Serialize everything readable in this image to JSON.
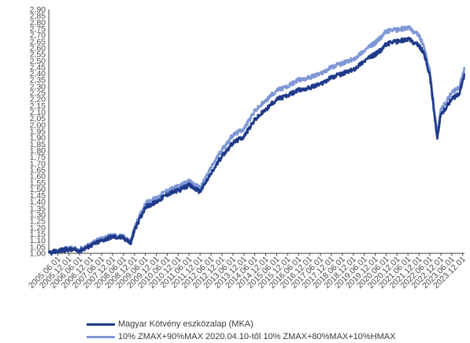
{
  "chart_data": {
    "type": "line",
    "title": "",
    "xlabel": "",
    "ylabel": "",
    "ylim": [
      1.0,
      2.9
    ],
    "yticks": [
      "1,00",
      "1,05",
      "1,10",
      "1,15",
      "1,20",
      "1,25",
      "1,30",
      "1,35",
      "1,40",
      "1,45",
      "1,50",
      "1,55",
      "1,60",
      "1,65",
      "1,70",
      "1,75",
      "1,80",
      "1,85",
      "1,90",
      "1,95",
      "2,00",
      "2,05",
      "2,10",
      "2,15",
      "2,20",
      "2,25",
      "2,30",
      "2,35",
      "2,40",
      "2,45",
      "2,50",
      "2,55",
      "2,60",
      "2,65",
      "2,70",
      "2,75",
      "2,80",
      "2,85",
      "2,90"
    ],
    "xticks": [
      "2005.06.01",
      "2005.12.01",
      "2006.06.01",
      "2006.12.01",
      "2007.06.01",
      "2007.12.01",
      "2008.06.01",
      "2008.12.01",
      "2009.06.01",
      "2009.12.01",
      "2010.06.01",
      "2010.12.01",
      "2011.06.01",
      "2011.12.01",
      "2012.06.01",
      "2012.12.01",
      "2013.06.01",
      "2013.12.01",
      "2014.06.01",
      "2014.12.01",
      "2015.06.01",
      "2015.12.01",
      "2016.06.01",
      "2016.12.01",
      "2017.06.01",
      "2017.12.01",
      "2018.06.01",
      "2018.12.01",
      "2019.06.01",
      "2019.12.01",
      "2020.06.01",
      "2020.12.01",
      "2021.06.01",
      "2021.12.01",
      "2022.06.01",
      "2022.12.01",
      "2023.06.01",
      "2023.12.01"
    ],
    "x_range": [
      "2005.01.01",
      "2023.12.31"
    ],
    "legend_position": "bottom",
    "series": [
      {
        "name": "Magyar Kötvény eszközalap (MKA)",
        "color": "#1f3a8a",
        "points": [
          [
            "2005.01.01",
            1.0
          ],
          [
            "2005.06.01",
            1.02
          ],
          [
            "2005.12.01",
            1.03
          ],
          [
            "2006.06.01",
            1.02
          ],
          [
            "2006.12.01",
            1.06
          ],
          [
            "2007.06.01",
            1.1
          ],
          [
            "2007.12.01",
            1.13
          ],
          [
            "2008.06.01",
            1.12
          ],
          [
            "2008.10.01",
            1.08
          ],
          [
            "2008.12.01",
            1.18
          ],
          [
            "2009.06.01",
            1.36
          ],
          [
            "2009.12.01",
            1.4
          ],
          [
            "2010.06.01",
            1.46
          ],
          [
            "2010.12.01",
            1.49
          ],
          [
            "2011.06.01",
            1.53
          ],
          [
            "2011.12.01",
            1.48
          ],
          [
            "2012.06.01",
            1.62
          ],
          [
            "2012.12.01",
            1.76
          ],
          [
            "2013.06.01",
            1.86
          ],
          [
            "2013.12.01",
            1.91
          ],
          [
            "2014.06.01",
            2.04
          ],
          [
            "2014.12.01",
            2.12
          ],
          [
            "2015.06.01",
            2.2
          ],
          [
            "2015.12.01",
            2.23
          ],
          [
            "2016.06.01",
            2.27
          ],
          [
            "2016.12.01",
            2.29
          ],
          [
            "2017.06.01",
            2.32
          ],
          [
            "2017.12.01",
            2.37
          ],
          [
            "2018.06.01",
            2.4
          ],
          [
            "2018.12.01",
            2.43
          ],
          [
            "2019.06.01",
            2.5
          ],
          [
            "2019.12.01",
            2.55
          ],
          [
            "2020.03.01",
            2.58
          ],
          [
            "2020.06.01",
            2.63
          ],
          [
            "2020.12.01",
            2.65
          ],
          [
            "2021.06.01",
            2.67
          ],
          [
            "2021.12.01",
            2.62
          ],
          [
            "2022.03.01",
            2.55
          ],
          [
            "2022.06.01",
            2.38
          ],
          [
            "2022.10.01",
            1.9
          ],
          [
            "2022.12.01",
            2.08
          ],
          [
            "2023.06.01",
            2.2
          ],
          [
            "2023.10.01",
            2.24
          ],
          [
            "2023.12.31",
            2.39
          ]
        ]
      },
      {
        "name": "10% ZMAX+90%MAX 2020.04.10-től 10% ZMAX+80%MAX+10%HMAX",
        "color": "#7e97d6",
        "points": [
          [
            "2005.01.01",
            1.0
          ],
          [
            "2005.06.01",
            1.02
          ],
          [
            "2005.12.01",
            1.04
          ],
          [
            "2006.06.01",
            1.03
          ],
          [
            "2006.12.01",
            1.07
          ],
          [
            "2007.06.01",
            1.12
          ],
          [
            "2007.12.01",
            1.14
          ],
          [
            "2008.06.01",
            1.13
          ],
          [
            "2008.10.01",
            1.09
          ],
          [
            "2008.12.01",
            1.2
          ],
          [
            "2009.06.01",
            1.39
          ],
          [
            "2009.12.01",
            1.43
          ],
          [
            "2010.06.01",
            1.49
          ],
          [
            "2010.12.01",
            1.52
          ],
          [
            "2011.06.01",
            1.56
          ],
          [
            "2011.12.01",
            1.51
          ],
          [
            "2012.06.01",
            1.67
          ],
          [
            "2012.12.01",
            1.81
          ],
          [
            "2013.06.01",
            1.92
          ],
          [
            "2013.12.01",
            1.97
          ],
          [
            "2014.06.01",
            2.11
          ],
          [
            "2014.12.01",
            2.19
          ],
          [
            "2015.06.01",
            2.27
          ],
          [
            "2015.12.01",
            2.3
          ],
          [
            "2016.06.01",
            2.35
          ],
          [
            "2016.12.01",
            2.37
          ],
          [
            "2017.06.01",
            2.4
          ],
          [
            "2017.12.01",
            2.45
          ],
          [
            "2018.06.01",
            2.48
          ],
          [
            "2018.12.01",
            2.51
          ],
          [
            "2019.06.01",
            2.58
          ],
          [
            "2019.12.01",
            2.64
          ],
          [
            "2020.03.01",
            2.68
          ],
          [
            "2020.06.01",
            2.73
          ],
          [
            "2020.12.01",
            2.74
          ],
          [
            "2021.06.01",
            2.76
          ],
          [
            "2021.12.01",
            2.7
          ],
          [
            "2022.03.01",
            2.6
          ],
          [
            "2022.06.01",
            2.42
          ],
          [
            "2022.10.01",
            1.93
          ],
          [
            "2022.12.01",
            2.12
          ],
          [
            "2023.06.01",
            2.25
          ],
          [
            "2023.10.01",
            2.29
          ],
          [
            "2023.12.31",
            2.44
          ]
        ]
      }
    ]
  }
}
